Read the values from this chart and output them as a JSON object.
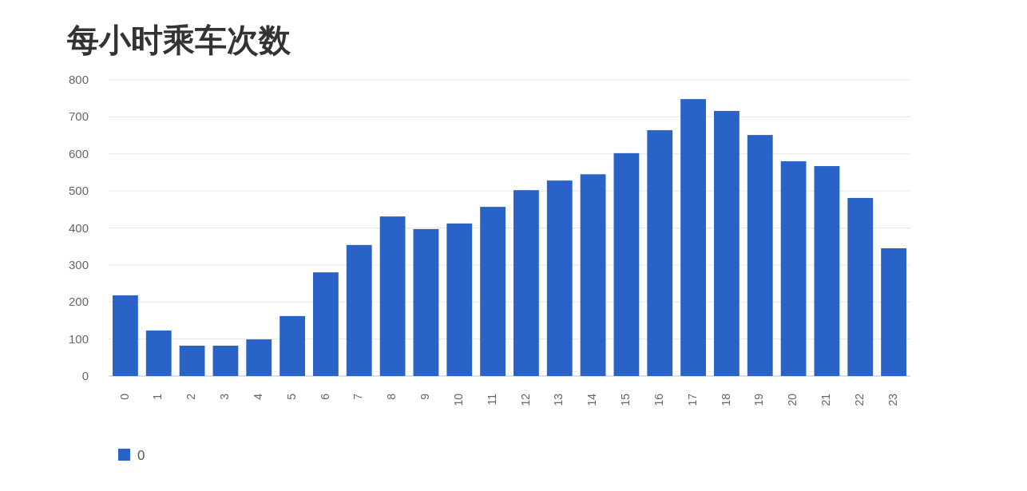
{
  "chart_data": {
    "type": "bar",
    "title": "每小时乘车次数",
    "categories": [
      "0",
      "1",
      "2",
      "3",
      "4",
      "5",
      "6",
      "7",
      "8",
      "9",
      "10",
      "11",
      "12",
      "13",
      "14",
      "15",
      "16",
      "17",
      "18",
      "19",
      "20",
      "21",
      "22",
      "23"
    ],
    "series": [
      {
        "name": "0",
        "color": "#2a63c7",
        "values": [
          218,
          123,
          82,
          82,
          99,
          162,
          280,
          354,
          431,
          397,
          412,
          457,
          502,
          528,
          545,
          602,
          664,
          748,
          716,
          651,
          580,
          567,
          481,
          345
        ]
      }
    ],
    "ylim": [
      0,
      800
    ],
    "yticks": [
      0,
      100,
      200,
      300,
      400,
      500,
      600,
      700,
      800
    ],
    "grid": "y",
    "legend": "bottom left"
  }
}
